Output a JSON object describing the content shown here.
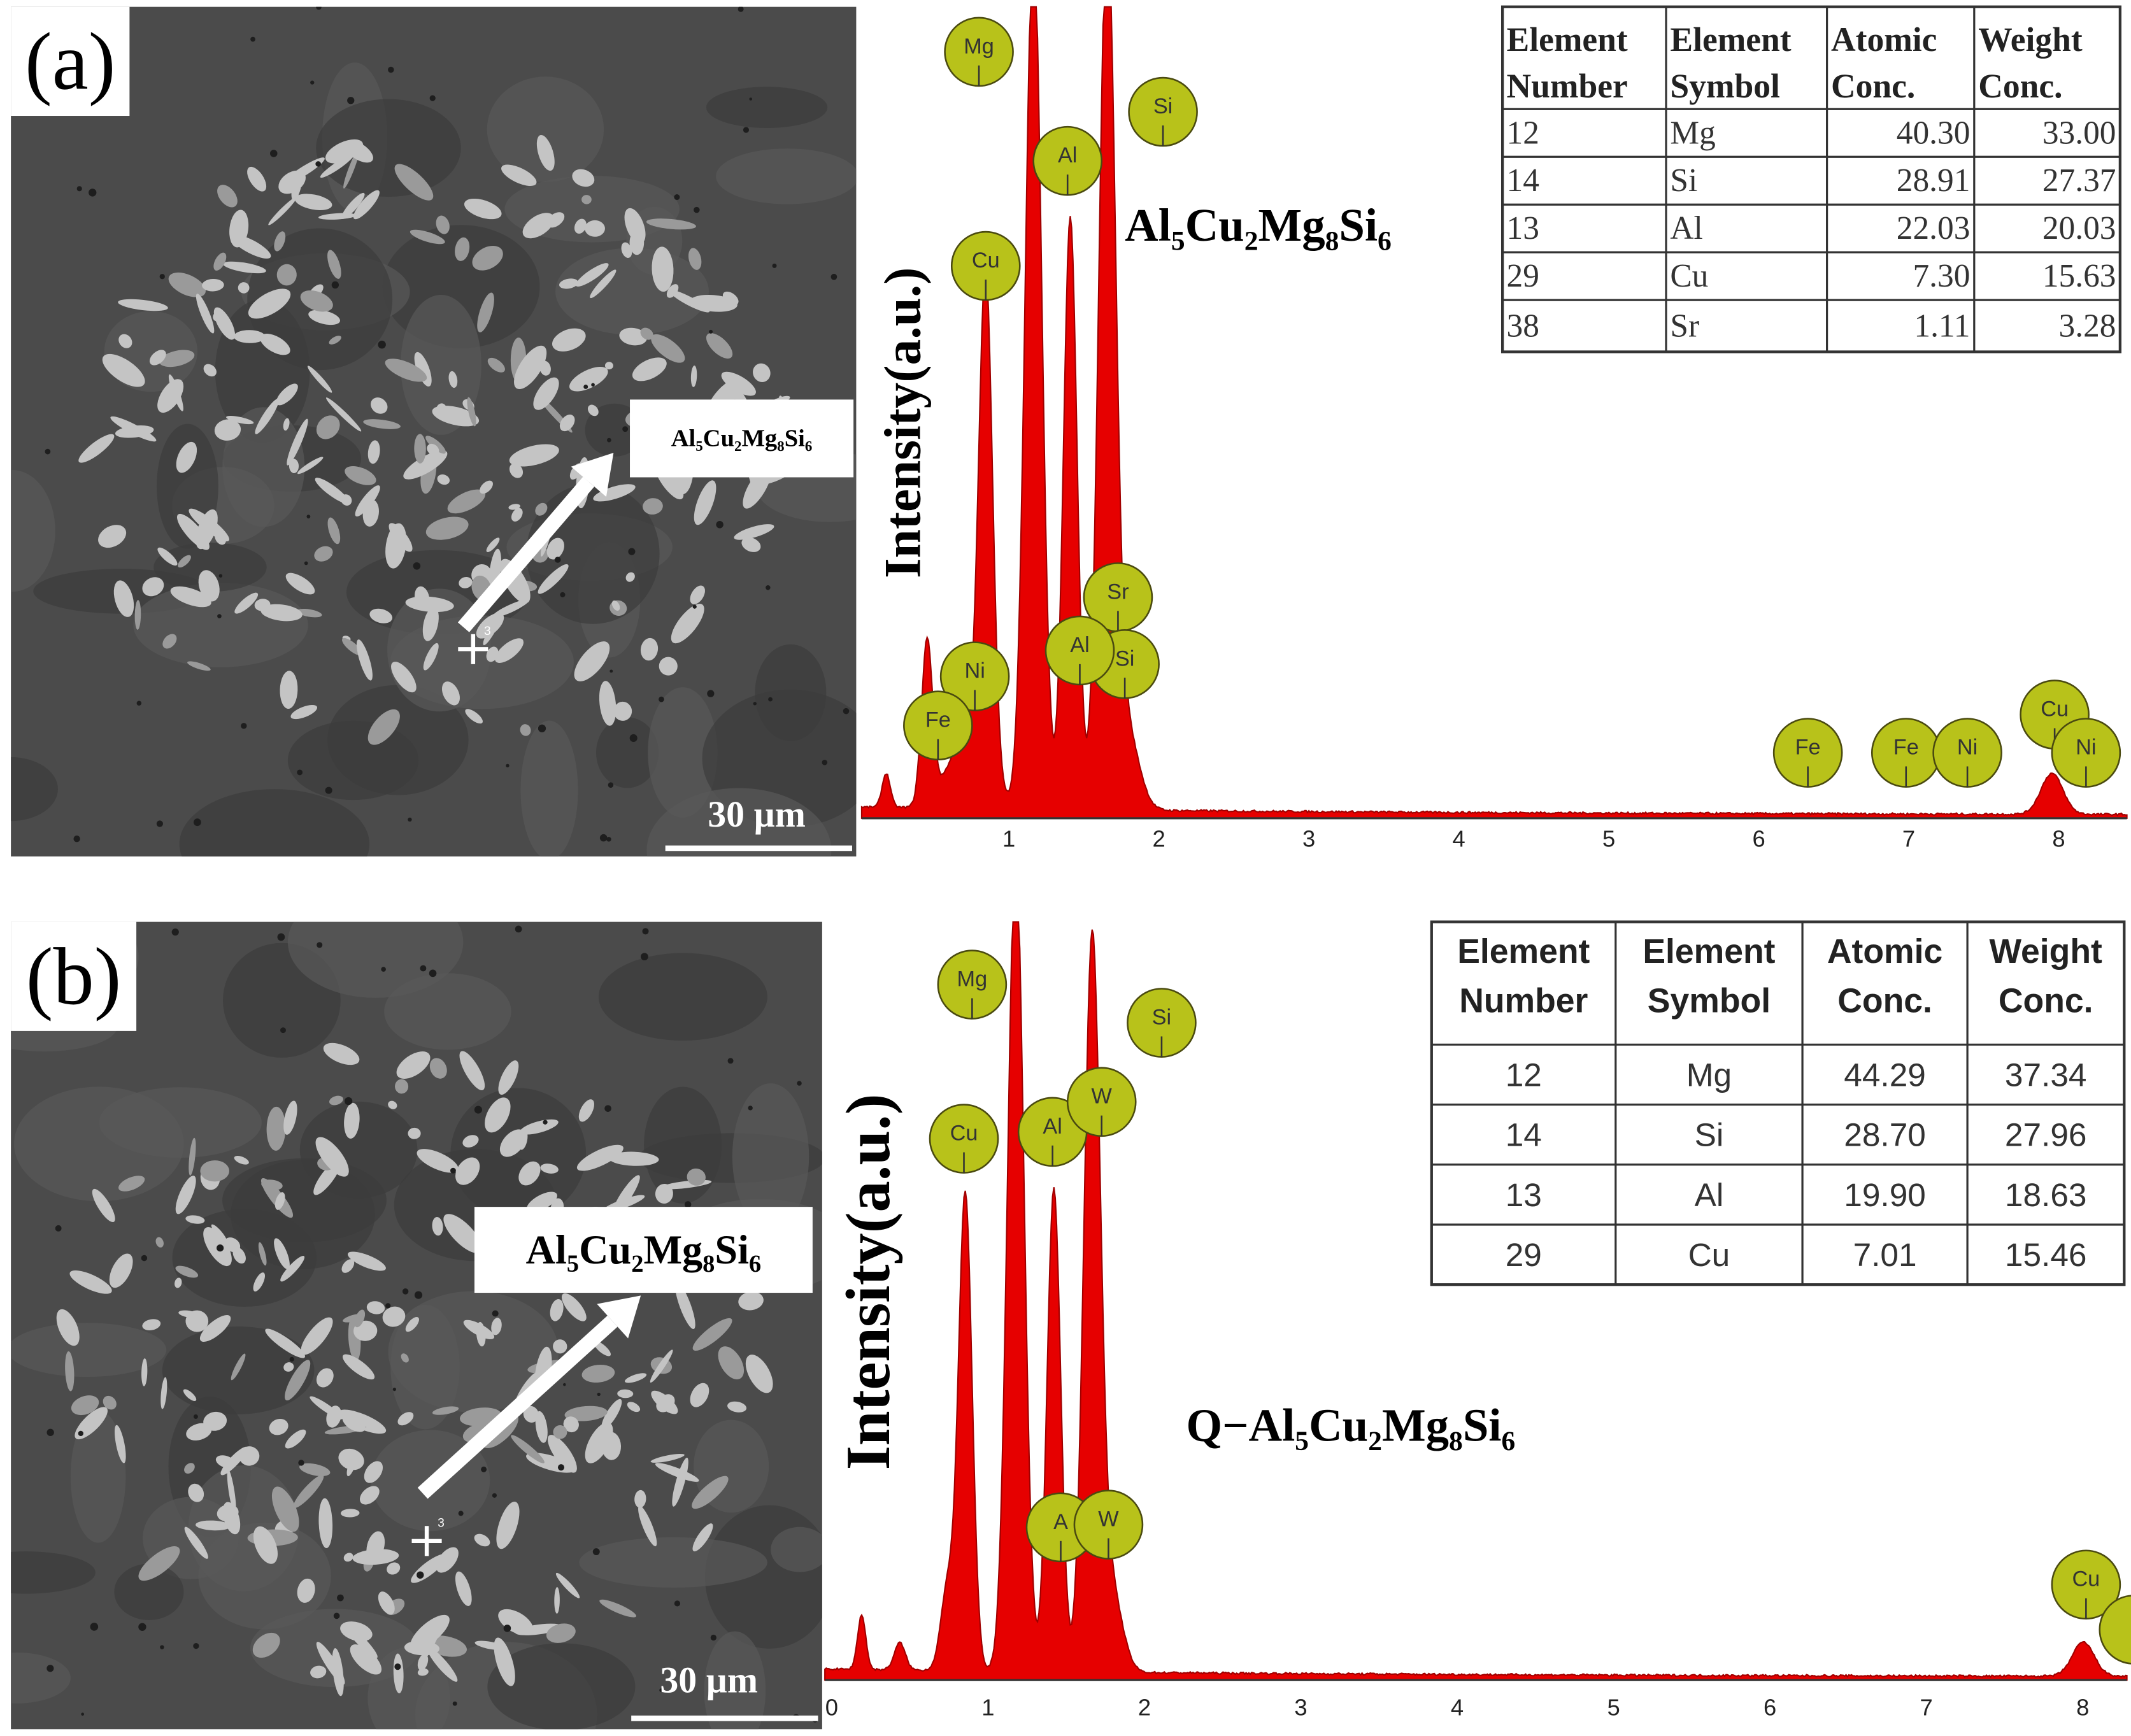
{
  "panels": [
    {
      "label": "(a)",
      "micrograph": {
        "phase_label": "Al₅Cu₂Mg₈Si₆",
        "marker": "3",
        "scale_bar": "30 µm"
      },
      "spectrum": {
        "y_label": "Intensity(a.u.)",
        "xticks": [
          1,
          2,
          3,
          4,
          5,
          6,
          7,
          8
        ],
        "compound": "Al₅Cu₂Mg₈Si₆",
        "peak_labels": [
          "Mg",
          "Si",
          "Al",
          "Cu",
          "Sr",
          "Si",
          "Al",
          "Ni",
          "Fe",
          "Fe",
          "Fe",
          "Ni",
          "Cu",
          "Ni"
        ]
      },
      "table": {
        "header": [
          [
            "Element",
            "Number"
          ],
          [
            "Element",
            "Symbol"
          ],
          [
            "Atomic",
            "Conc."
          ],
          [
            "Weight",
            "Conc."
          ]
        ],
        "rows": [
          [
            "12",
            "Mg",
            "40.30",
            "33.00"
          ],
          [
            "14",
            "Si",
            "28.91",
            "27.37"
          ],
          [
            "13",
            "Al",
            "22.03",
            "20.03"
          ],
          [
            "29",
            "Cu",
            "7.30",
            "15.63"
          ],
          [
            "38",
            "Sr",
            "1.11",
            "3.28"
          ]
        ]
      }
    },
    {
      "label": "(b)",
      "micrograph": {
        "phase_label": "Al₅Cu₂Mg₈Si₆",
        "marker": "3",
        "scale_bar": "30 µm"
      },
      "spectrum": {
        "y_label": "Intensity(a.u.)",
        "xticks": [
          0,
          1,
          2,
          3,
          4,
          5,
          6,
          7,
          8
        ],
        "compound": "Q−Al₅Cu₂Mg₈Si₆",
        "peak_labels": [
          "Mg",
          "Si",
          "Cu",
          "Al",
          "W",
          "A",
          "W",
          "Cu"
        ]
      },
      "table": {
        "header": [
          [
            "Element",
            "Number"
          ],
          [
            "Element",
            "Symbol"
          ],
          [
            "Atomic",
            "Conc."
          ],
          [
            "Weight",
            "Conc."
          ]
        ],
        "rows": [
          [
            "12",
            "Mg",
            "44.29",
            "37.34"
          ],
          [
            "14",
            "Si",
            "28.70",
            "27.96"
          ],
          [
            "13",
            "Al",
            "19.90",
            "18.63"
          ],
          [
            "29",
            "Cu",
            "7.01",
            "15.46"
          ]
        ]
      }
    }
  ]
}
